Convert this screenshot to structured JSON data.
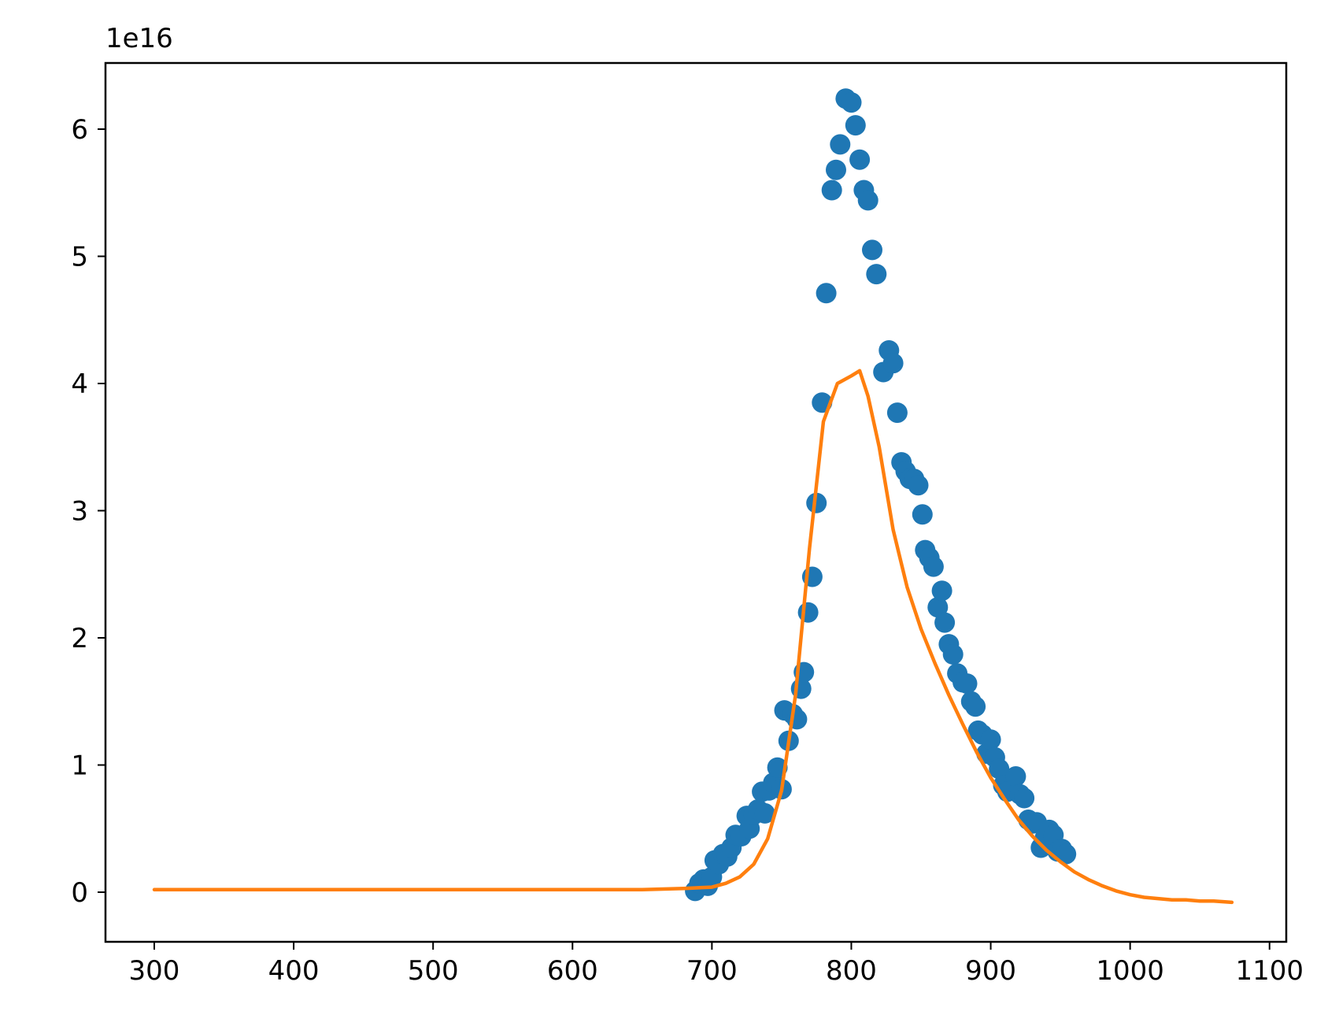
{
  "chart_data": {
    "type": "scatter",
    "title": "",
    "xlabel": "",
    "ylabel": "",
    "y_offset_text": "1e16",
    "y_multiplier": 1e+16,
    "xlim": [
      265,
      1112
    ],
    "ylim": [
      -0.39,
      6.52
    ],
    "xticks": [
      300,
      400,
      500,
      600,
      700,
      800,
      900,
      1000,
      1100
    ],
    "xtick_labels": [
      "300",
      "400",
      "500",
      "600",
      "700",
      "800",
      "900",
      "1000",
      "1100"
    ],
    "yticks": [
      0,
      1,
      2,
      3,
      4,
      5,
      6
    ],
    "ytick_labels": [
      "0",
      "1",
      "2",
      "3",
      "4",
      "5",
      "6"
    ],
    "grid": false,
    "legend": "none",
    "series": [
      {
        "kind": "scatter",
        "color": "#1f77b4",
        "points": [
          [
            688,
            0.01
          ],
          [
            691,
            0.07
          ],
          [
            694,
            0.1
          ],
          [
            697,
            0.05
          ],
          [
            700,
            0.12
          ],
          [
            702,
            0.25
          ],
          [
            705,
            0.22
          ],
          [
            708,
            0.3
          ],
          [
            711,
            0.28
          ],
          [
            714,
            0.35
          ],
          [
            717,
            0.45
          ],
          [
            721,
            0.44
          ],
          [
            725,
            0.6
          ],
          [
            727,
            0.5
          ],
          [
            730,
            0.61
          ],
          [
            733,
            0.65
          ],
          [
            736,
            0.79
          ],
          [
            738,
            0.62
          ],
          [
            741,
            0.8
          ],
          [
            744,
            0.86
          ],
          [
            747,
            0.98
          ],
          [
            750,
            0.81
          ],
          [
            752,
            1.43
          ],
          [
            755,
            1.19
          ],
          [
            758,
            1.4
          ],
          [
            761,
            1.36
          ],
          [
            764,
            1.6
          ],
          [
            766,
            1.73
          ],
          [
            769,
            2.2
          ],
          [
            772,
            2.48
          ],
          [
            775,
            3.06
          ],
          [
            779,
            3.85
          ],
          [
            782,
            4.71
          ],
          [
            786,
            5.52
          ],
          [
            789,
            5.68
          ],
          [
            792,
            5.88
          ],
          [
            796,
            6.24
          ],
          [
            800,
            6.21
          ],
          [
            803,
            6.03
          ],
          [
            806,
            5.76
          ],
          [
            809,
            5.52
          ],
          [
            812,
            5.44
          ],
          [
            815,
            5.05
          ],
          [
            818,
            4.86
          ],
          [
            823,
            4.09
          ],
          [
            827,
            4.26
          ],
          [
            830,
            4.16
          ],
          [
            833,
            3.77
          ],
          [
            836,
            3.38
          ],
          [
            839,
            3.31
          ],
          [
            842,
            3.25
          ],
          [
            845,
            3.25
          ],
          [
            848,
            3.2
          ],
          [
            851,
            2.97
          ],
          [
            853,
            2.69
          ],
          [
            856,
            2.63
          ],
          [
            859,
            2.56
          ],
          [
            862,
            2.24
          ],
          [
            865,
            2.37
          ],
          [
            867,
            2.12
          ],
          [
            870,
            1.95
          ],
          [
            873,
            1.87
          ],
          [
            876,
            1.72
          ],
          [
            880,
            1.65
          ],
          [
            883,
            1.64
          ],
          [
            886,
            1.5
          ],
          [
            889,
            1.46
          ],
          [
            891,
            1.27
          ],
          [
            894,
            1.24
          ],
          [
            897,
            1.09
          ],
          [
            900,
            1.2
          ],
          [
            903,
            1.06
          ],
          [
            906,
            0.97
          ],
          [
            909,
            0.84
          ],
          [
            912,
            0.79
          ],
          [
            915,
            0.8
          ],
          [
            918,
            0.91
          ],
          [
            921,
            0.77
          ],
          [
            924,
            0.74
          ],
          [
            927,
            0.57
          ],
          [
            930,
            0.54
          ],
          [
            933,
            0.55
          ],
          [
            936,
            0.35
          ],
          [
            939,
            0.43
          ],
          [
            942,
            0.49
          ],
          [
            945,
            0.45
          ],
          [
            948,
            0.32
          ],
          [
            951,
            0.34
          ],
          [
            954,
            0.3
          ]
        ]
      },
      {
        "kind": "line",
        "color": "#ff7f0e",
        "points": [
          [
            300,
            0.02
          ],
          [
            400,
            0.02
          ],
          [
            500,
            0.02
          ],
          [
            600,
            0.02
          ],
          [
            650,
            0.02
          ],
          [
            680,
            0.03
          ],
          [
            700,
            0.04
          ],
          [
            710,
            0.07
          ],
          [
            720,
            0.12
          ],
          [
            730,
            0.22
          ],
          [
            740,
            0.42
          ],
          [
            750,
            0.8
          ],
          [
            760,
            1.55
          ],
          [
            770,
            2.7
          ],
          [
            780,
            3.7
          ],
          [
            790,
            4.0
          ],
          [
            800,
            4.06
          ],
          [
            806,
            4.1
          ],
          [
            812,
            3.9
          ],
          [
            820,
            3.5
          ],
          [
            830,
            2.85
          ],
          [
            840,
            2.4
          ],
          [
            850,
            2.07
          ],
          [
            860,
            1.8
          ],
          [
            870,
            1.55
          ],
          [
            880,
            1.32
          ],
          [
            890,
            1.1
          ],
          [
            900,
            0.9
          ],
          [
            910,
            0.73
          ],
          [
            920,
            0.57
          ],
          [
            930,
            0.44
          ],
          [
            940,
            0.33
          ],
          [
            950,
            0.24
          ],
          [
            960,
            0.16
          ],
          [
            970,
            0.1
          ],
          [
            980,
            0.05
          ],
          [
            990,
            0.01
          ],
          [
            1000,
            -0.02
          ],
          [
            1010,
            -0.04
          ],
          [
            1020,
            -0.05
          ],
          [
            1030,
            -0.06
          ],
          [
            1040,
            -0.06
          ],
          [
            1050,
            -0.07
          ],
          [
            1060,
            -0.07
          ],
          [
            1073,
            -0.08
          ]
        ]
      }
    ]
  }
}
